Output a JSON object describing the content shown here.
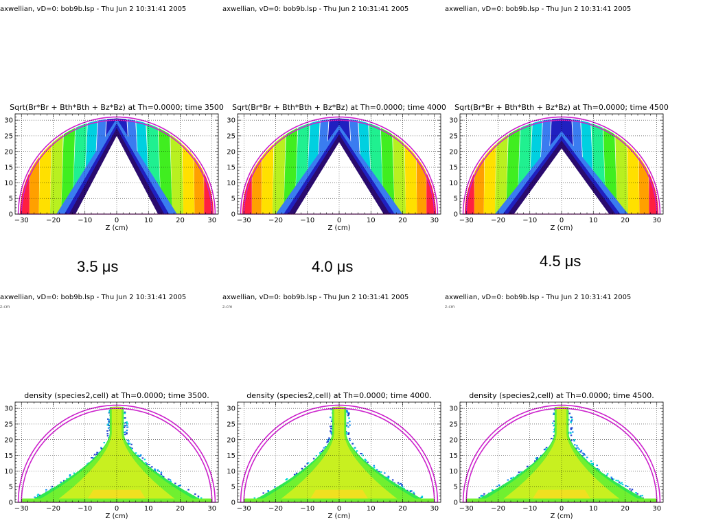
{
  "headers": [
    "axwellian, vD=0: bob9b.lsp - Thu Jun  2 10:31:41 2005",
    "axwellian, vD=0: bob9b.lsp - Thu Jun  2 10:31:41 2005",
    "axwellian, vD=0: bob9b.lsp - Thu Jun  2 10:31:41 2005",
    "axwellian, vD=0: bob9b.lsp - Thu Jun  2 10:31:41 2005",
    "axwellian, vD=0: bob9b.lsp - Thu Jun  2 10:31:41 2005",
    "axwellian, vD=0: bob9b.lsp - Thu Jun  2 10:31:41 2005"
  ],
  "sub_labels": [
    "z-cm",
    "z-cm",
    "z-cm"
  ],
  "time_labels": [
    "3.5 μs",
    "4.0 μs",
    "4.5 μs"
  ],
  "colors": {
    "magenta": "#cc22cc",
    "bands": [
      "#2a0a6e",
      "#2020c0",
      "#3a7cf0",
      "#00d0e0",
      "#20f090",
      "#40ee20",
      "#b8f020",
      "#ffe000",
      "#ffa000",
      "#ff2040"
    ],
    "density": [
      "#f0e020",
      "#c8f020",
      "#70f030",
      "#30e850",
      "#00d8d8",
      "#1090f0",
      "#2040d0"
    ]
  },
  "chart_data": [
    {
      "type": "heatmap",
      "title": "Sqrt(Br*Br +  Bth*Bth + Bz*Bz) at Th=0.0000; time 3500",
      "xlabel": "Z (cm)",
      "ylabel": "",
      "xlim": [
        -32,
        32
      ],
      "ylim": [
        0,
        32
      ],
      "x_ticks": [
        -30,
        -20,
        -10,
        0,
        10,
        20,
        30
      ],
      "y_ticks": [
        0,
        5,
        10,
        15,
        20,
        25,
        30
      ],
      "grid": true,
      "field": "magnetic",
      "apex_y": 28,
      "hole_edge_x": 14,
      "time": 3500
    },
    {
      "type": "heatmap",
      "title": "Sqrt(Br*Br +  Bth*Bth + Bz*Bz) at Th=0.0000; time 4000",
      "xlabel": "Z (cm)",
      "ylabel": "",
      "xlim": [
        -32,
        32
      ],
      "ylim": [
        0,
        32
      ],
      "x_ticks": [
        -30,
        -20,
        -10,
        0,
        10,
        20,
        30
      ],
      "y_ticks": [
        0,
        5,
        10,
        15,
        20,
        25,
        30
      ],
      "grid": true,
      "field": "magnetic",
      "apex_y": 26,
      "hole_edge_x": 15,
      "time": 4000
    },
    {
      "type": "heatmap",
      "title": "Sqrt(Br*Br +  Bth*Bth + Bz*Bz) at Th=0.0000; time 4500",
      "xlabel": "Z (cm)",
      "ylabel": "",
      "xlim": [
        -32,
        32
      ],
      "ylim": [
        0,
        32
      ],
      "x_ticks": [
        -30,
        -20,
        -10,
        0,
        10,
        20,
        30
      ],
      "y_ticks": [
        0,
        5,
        10,
        15,
        20,
        25,
        30
      ],
      "grid": true,
      "field": "magnetic",
      "apex_y": 24,
      "hole_edge_x": 16,
      "time": 4500
    },
    {
      "type": "heatmap",
      "title": "density (species2,cell) at Th=0.0000; time 3500.",
      "xlabel": "Z (cm)",
      "ylabel": "",
      "xlim": [
        -32,
        32
      ],
      "ylim": [
        0,
        32
      ],
      "x_ticks": [
        -30,
        -20,
        -10,
        0,
        10,
        20,
        30
      ],
      "y_ticks": [
        0,
        5,
        10,
        15,
        20,
        25,
        30
      ],
      "grid": true,
      "field": "density",
      "time": 3500
    },
    {
      "type": "heatmap",
      "title": "density (species2,cell) at Th=0.0000; time 4000.",
      "xlabel": "Z (cm)",
      "ylabel": "",
      "xlim": [
        -32,
        32
      ],
      "ylim": [
        0,
        32
      ],
      "x_ticks": [
        -30,
        -20,
        -10,
        0,
        10,
        20,
        30
      ],
      "y_ticks": [
        0,
        5,
        10,
        15,
        20,
        25,
        30
      ],
      "grid": true,
      "field": "density",
      "time": 4000
    },
    {
      "type": "heatmap",
      "title": "density (species2,cell) at Th=0.0000; time 4500.",
      "xlabel": "Z (cm)",
      "ylabel": "",
      "xlim": [
        -32,
        32
      ],
      "ylim": [
        0,
        32
      ],
      "x_ticks": [
        -30,
        -20,
        -10,
        0,
        10,
        20,
        30
      ],
      "y_ticks": [
        0,
        5,
        10,
        15,
        20,
        25,
        30
      ],
      "grid": true,
      "field": "density",
      "time": 4500
    }
  ]
}
